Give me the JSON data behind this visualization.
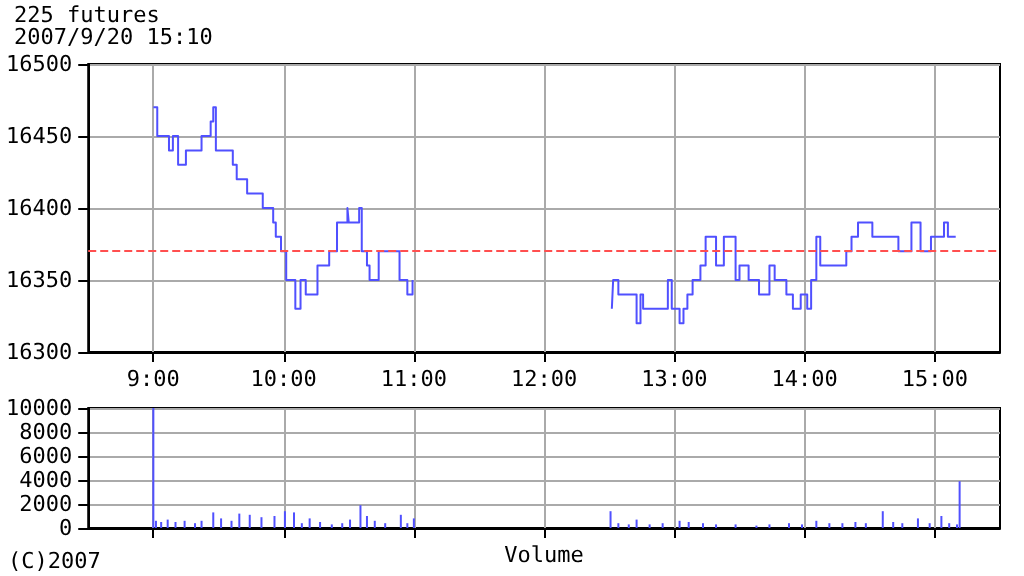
{
  "chart_data": [
    {
      "type": "step",
      "title": "225 futures",
      "subtitle": "2007/9/20 15:10",
      "series": [
        {
          "color": "#5050ff",
          "x": [
            9.0,
            9.03,
            9.12,
            9.15,
            9.19,
            9.25,
            9.27,
            9.37,
            9.44,
            9.46,
            9.48,
            9.61,
            9.64,
            9.72,
            9.84,
            9.92,
            9.94,
            9.98,
            10.02,
            10.09,
            10.13,
            10.17,
            10.26,
            10.35,
            10.41,
            10.49,
            10.5,
            10.58,
            10.6,
            10.64,
            10.66,
            10.73,
            10.89,
            10.95,
            10.99,
            11.0
          ],
          "values": [
            16470,
            16450,
            16440,
            16450,
            16430,
            16440,
            16440,
            16450,
            16460,
            16470,
            16440,
            16430,
            16420,
            16410,
            16400,
            16390,
            16380,
            16370,
            16350,
            16330,
            16350,
            16340,
            16360,
            16370,
            16390,
            16400,
            16390,
            16400,
            16370,
            16360,
            16350,
            16370,
            16350,
            16340,
            16350,
            16350
          ]
        },
        {
          "color": "#5050ff",
          "x": [
            12.52,
            12.53,
            12.57,
            12.71,
            12.74,
            12.76,
            12.95,
            12.98,
            13.04,
            13.07,
            13.1,
            13.14,
            13.2,
            13.24,
            13.32,
            13.38,
            13.47,
            13.5,
            13.57,
            13.65,
            13.73,
            13.77,
            13.86,
            13.91,
            13.97,
            14.02,
            14.05,
            14.09,
            14.12,
            14.32,
            14.36,
            14.41,
            14.52,
            14.72,
            14.82,
            14.89,
            14.97,
            15.07,
            15.1,
            15.16
          ],
          "values": [
            16330,
            16350,
            16340,
            16320,
            16340,
            16330,
            16350,
            16330,
            16320,
            16330,
            16340,
            16350,
            16360,
            16380,
            16360,
            16380,
            16350,
            16360,
            16350,
            16340,
            16360,
            16350,
            16340,
            16330,
            16340,
            16330,
            16350,
            16380,
            16360,
            16370,
            16380,
            16390,
            16380,
            16370,
            16390,
            16370,
            16380,
            16390,
            16380,
            16380
          ]
        }
      ],
      "xlim": [
        8.5,
        15.5
      ],
      "ylim": [
        16300,
        16500
      ],
      "xticks": [
        {
          "value": 9,
          "label": "9:00"
        },
        {
          "value": 10,
          "label": "10:00"
        },
        {
          "value": 11,
          "label": "11:00"
        },
        {
          "value": 12,
          "label": "12:00"
        },
        {
          "value": 13,
          "label": "13:00"
        },
        {
          "value": 14,
          "label": "14:00"
        },
        {
          "value": 15,
          "label": "15:00"
        }
      ],
      "yticks": [
        16300,
        16350,
        16400,
        16450,
        16500
      ],
      "ref_lines": [
        {
          "axis": "y",
          "value": 16370,
          "color": "#ff4f4f",
          "line_style": "dashed"
        }
      ],
      "grid": true,
      "marker": "none"
    },
    {
      "type": "bar",
      "xlabel": "Volume",
      "annotations": [
        "(C)2007"
      ],
      "x": [
        9.0,
        9.02,
        9.06,
        9.11,
        9.17,
        9.24,
        9.32,
        9.37,
        9.46,
        9.52,
        9.6,
        9.66,
        9.74,
        9.83,
        9.93,
        10.01,
        10.08,
        10.14,
        10.2,
        10.28,
        10.37,
        10.45,
        10.51,
        10.59,
        10.64,
        10.7,
        10.78,
        10.9,
        10.95,
        11.0,
        12.51,
        12.57,
        12.65,
        12.71,
        12.81,
        12.91,
        13.04,
        13.11,
        13.22,
        13.32,
        13.47,
        13.63,
        13.73,
        13.88,
        13.98,
        14.09,
        14.19,
        14.29,
        14.39,
        14.47,
        14.6,
        14.68,
        14.75,
        14.87,
        14.96,
        15.05,
        15.11,
        15.17,
        15.19
      ],
      "series": [
        {
          "color": "#5050ff",
          "values": [
            10000,
            600,
            500,
            700,
            500,
            600,
            400,
            600,
            1300,
            800,
            600,
            1200,
            1100,
            900,
            1000,
            1400,
            1300,
            400,
            800,
            500,
            300,
            400,
            700,
            1900,
            1000,
            600,
            400,
            1100,
            400,
            800,
            1400,
            400,
            300,
            700,
            300,
            400,
            600,
            500,
            400,
            300,
            300,
            200,
            300,
            400,
            300,
            600,
            400,
            400,
            500,
            400,
            1400,
            500,
            400,
            800,
            400,
            1000,
            400,
            300,
            3900
          ]
        }
      ],
      "xlim": [
        8.5,
        15.5
      ],
      "ylim": [
        0,
        10000
      ],
      "xticks": [
        {
          "value": 9,
          "label": null
        },
        {
          "value": 10,
          "label": null
        },
        {
          "value": 11,
          "label": null
        },
        {
          "value": 12,
          "label": null
        },
        {
          "value": 13,
          "label": null
        },
        {
          "value": 14,
          "label": null
        },
        {
          "value": 15,
          "label": null
        }
      ],
      "yticks": [
        0,
        2000,
        4000,
        6000,
        8000,
        10000
      ],
      "tick_labels": "y",
      "grid": true
    }
  ]
}
